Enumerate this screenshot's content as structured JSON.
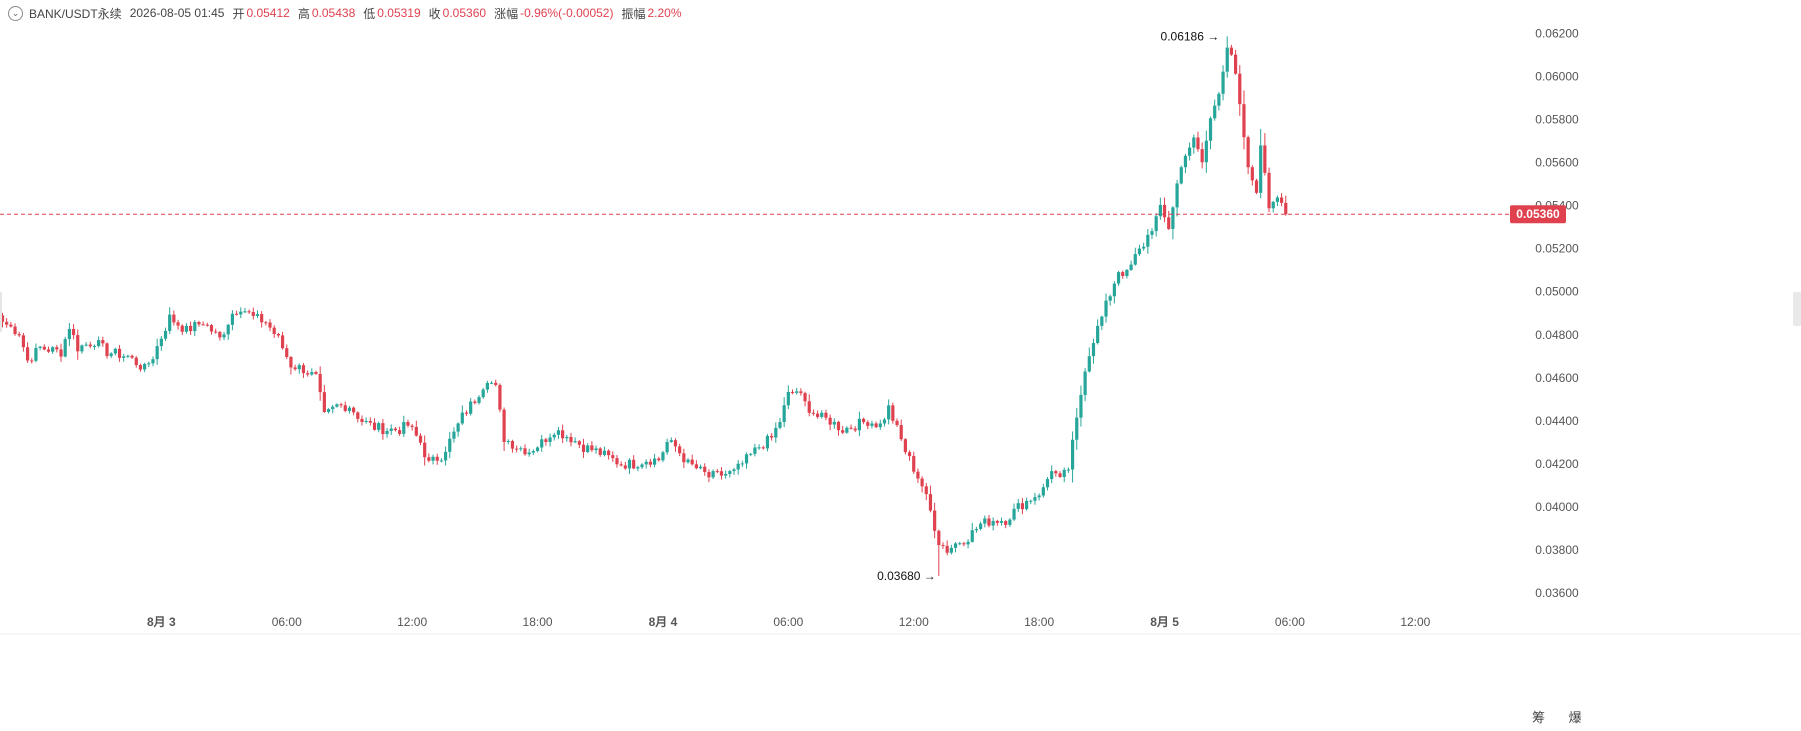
{
  "header": {
    "collapse_icon": "chevron-down-icon",
    "symbol": "BANK/USDT永续",
    "datetime": "2026-08-05 01:45",
    "open_label": "开",
    "open_value": "0.05412",
    "high_label": "高",
    "high_value": "0.05438",
    "low_label": "低",
    "low_value": "0.05319",
    "close_label": "收",
    "close_value": "0.05360",
    "change_label": "涨幅",
    "change_value": "-0.96%(-0.00052)",
    "amplitude_label": "振幅",
    "amplitude_value": "2.20%"
  },
  "bottom": {
    "icon_a": "筹",
    "icon_b": "爆"
  },
  "colors": {
    "up": "#26a69a",
    "down": "#e0414f",
    "last_price": "#e0414f",
    "axis_text": "#555555"
  },
  "chart_data": {
    "type": "candlestick",
    "interval_minutes": 15,
    "y_ticks": [
      "0.03600",
      "0.03800",
      "0.04000",
      "0.04200",
      "0.04400",
      "0.04600",
      "0.04800",
      "0.05000",
      "0.05200",
      "0.05400",
      "0.05600",
      "0.05800",
      "0.06000",
      "0.06200"
    ],
    "ylim": [
      0.0354,
      0.0629
    ],
    "x_ticks": [
      "8月 3",
      "06:00",
      "12:00",
      "18:00",
      "8月 4",
      "06:00",
      "12:00",
      "18:00",
      "8月 5",
      "06:00",
      "12:00"
    ],
    "last_price": 0.0536,
    "last_price_label": "0.05360",
    "high_annotation": {
      "value": 0.06186,
      "label": "0.06186"
    },
    "low_annotation": {
      "value": 0.0368,
      "label": "0.03680"
    },
    "anchors": [
      [
        0,
        0.0486
      ],
      [
        4,
        0.0481
      ],
      [
        6,
        0.0468
      ],
      [
        9,
        0.0474
      ],
      [
        14,
        0.0472
      ],
      [
        16,
        0.0484
      ],
      [
        18,
        0.0474
      ],
      [
        22,
        0.0477
      ],
      [
        25,
        0.0472
      ],
      [
        30,
        0.047
      ],
      [
        34,
        0.0464
      ],
      [
        36,
        0.047
      ],
      [
        40,
        0.0488
      ],
      [
        44,
        0.0482
      ],
      [
        48,
        0.0486
      ],
      [
        52,
        0.0478
      ],
      [
        55,
        0.049
      ],
      [
        57,
        0.0493
      ],
      [
        60,
        0.0488
      ],
      [
        63,
        0.0486
      ],
      [
        66,
        0.0478
      ],
      [
        69,
        0.0466
      ],
      [
        72,
        0.0464
      ],
      [
        75,
        0.046
      ],
      [
        77,
        0.0442
      ],
      [
        80,
        0.0447
      ],
      [
        83,
        0.0447
      ],
      [
        86,
        0.044
      ],
      [
        89,
        0.0437
      ],
      [
        92,
        0.0436
      ],
      [
        95,
        0.0436
      ],
      [
        97,
        0.0438
      ],
      [
        100,
        0.043
      ],
      [
        102,
        0.042
      ],
      [
        105,
        0.0424
      ],
      [
        108,
        0.0434
      ],
      [
        110,
        0.0442
      ],
      [
        113,
        0.045
      ],
      [
        116,
        0.046
      ],
      [
        118,
        0.0455
      ],
      [
        120,
        0.0432
      ],
      [
        123,
        0.0428
      ],
      [
        126,
        0.0426
      ],
      [
        129,
        0.043
      ],
      [
        132,
        0.0436
      ],
      [
        136,
        0.0432
      ],
      [
        139,
        0.0428
      ],
      [
        142,
        0.0426
      ],
      [
        145,
        0.0423
      ],
      [
        148,
        0.042
      ],
      [
        151,
        0.042
      ],
      [
        154,
        0.0422
      ],
      [
        157,
        0.0422
      ],
      [
        159,
        0.043
      ],
      [
        161,
        0.0428
      ],
      [
        164,
        0.042
      ],
      [
        166,
        0.0418
      ],
      [
        169,
        0.0414
      ],
      [
        172,
        0.0415
      ],
      [
        175,
        0.0416
      ],
      [
        178,
        0.0422
      ],
      [
        181,
        0.0428
      ],
      [
        184,
        0.0432
      ],
      [
        186,
        0.044
      ],
      [
        188,
        0.0452
      ],
      [
        190,
        0.0454
      ],
      [
        192,
        0.0448
      ],
      [
        195,
        0.0442
      ],
      [
        198,
        0.044
      ],
      [
        201,
        0.0436
      ],
      [
        204,
        0.0438
      ],
      [
        207,
        0.044
      ],
      [
        210,
        0.0438
      ],
      [
        212,
        0.0446
      ],
      [
        214,
        0.0436
      ],
      [
        216,
        0.0426
      ],
      [
        218,
        0.0418
      ],
      [
        220,
        0.041
      ],
      [
        222,
        0.0398
      ],
      [
        224,
        0.0384
      ],
      [
        226,
        0.038
      ],
      [
        228,
        0.0383
      ],
      [
        231,
        0.0386
      ],
      [
        234,
        0.0392
      ],
      [
        237,
        0.0394
      ],
      [
        240,
        0.0394
      ],
      [
        243,
        0.04
      ],
      [
        246,
        0.0404
      ],
      [
        249,
        0.0408
      ],
      [
        251,
        0.0418
      ],
      [
        253,
        0.0412
      ],
      [
        255,
        0.0418
      ],
      [
        257,
        0.044
      ],
      [
        259,
        0.0465
      ],
      [
        261,
        0.0478
      ],
      [
        263,
        0.0488
      ],
      [
        265,
        0.0499
      ],
      [
        267,
        0.051
      ],
      [
        269,
        0.0508
      ],
      [
        271,
        0.0516
      ],
      [
        273,
        0.0522
      ],
      [
        275,
        0.053
      ],
      [
        277,
        0.0538
      ],
      [
        279,
        0.053
      ],
      [
        281,
        0.055
      ],
      [
        283,
        0.0565
      ],
      [
        285,
        0.057
      ],
      [
        287,
        0.056
      ],
      [
        289,
        0.058
      ],
      [
        291,
        0.0594
      ],
      [
        293,
        0.0614
      ],
      [
        294,
        0.0608
      ],
      [
        295,
        0.06
      ],
      [
        296,
        0.0585
      ],
      [
        297,
        0.0572
      ],
      [
        298,
        0.0556
      ],
      [
        300,
        0.0548
      ],
      [
        301,
        0.0566
      ],
      [
        302,
        0.0556
      ],
      [
        303,
        0.054
      ],
      [
        305,
        0.0546
      ],
      [
        306,
        0.0542
      ],
      [
        307,
        0.0536
      ]
    ]
  }
}
